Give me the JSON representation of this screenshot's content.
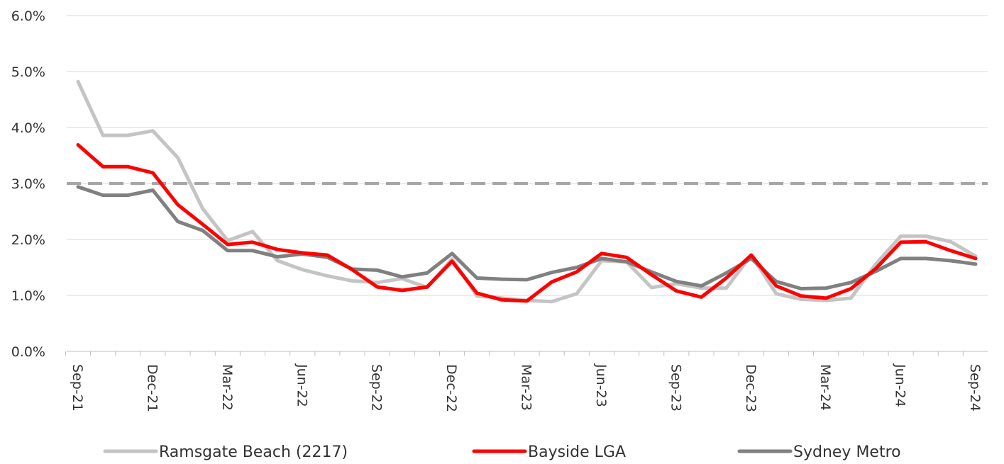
{
  "chart_data": {
    "type": "line",
    "title": "",
    "xlabel": "",
    "ylabel": "",
    "ylim": [
      0,
      6
    ],
    "y_ticks": [
      "0.0%",
      "1.0%",
      "2.0%",
      "3.0%",
      "4.0%",
      "5.0%",
      "6.0%"
    ],
    "x_tick_labels": [
      "Sep-21",
      "Dec-21",
      "Mar-22",
      "Jun-22",
      "Sep-22",
      "Dec-22",
      "Mar-23",
      "Jun-23",
      "Sep-23",
      "Dec-23",
      "Mar-24",
      "Jun-24",
      "Sep-24"
    ],
    "x": [
      "Sep-21",
      "Oct-21",
      "Nov-21",
      "Dec-21",
      "Jan-22",
      "Feb-22",
      "Mar-22",
      "Apr-22",
      "May-22",
      "Jun-22",
      "Jul-22",
      "Aug-22",
      "Sep-22",
      "Oct-22",
      "Nov-22",
      "Dec-22",
      "Jan-23",
      "Feb-23",
      "Mar-23",
      "Apr-23",
      "May-23",
      "Jun-23",
      "Jul-23",
      "Aug-23",
      "Sep-23",
      "Oct-23",
      "Nov-23",
      "Dec-23",
      "Jan-24",
      "Feb-24",
      "Mar-24",
      "Apr-24",
      "May-24",
      "Jun-24",
      "Jul-24",
      "Aug-24",
      "Sep-24"
    ],
    "grid": "horizontal",
    "legend_position": "bottom",
    "reference_line": {
      "value": 3.0,
      "style": "dashed",
      "color": "#a6a6a6"
    },
    "series": [
      {
        "name": "Ramsgate Beach (2217)",
        "color": "#c4c4c4",
        "values": [
          4.82,
          3.86,
          3.86,
          3.94,
          3.46,
          2.55,
          1.98,
          2.14,
          1.62,
          1.46,
          1.35,
          1.26,
          1.23,
          1.3,
          1.14,
          1.65,
          0.99,
          0.95,
          0.91,
          0.89,
          1.03,
          1.62,
          1.6,
          1.14,
          1.21,
          1.13,
          1.13,
          1.72,
          1.03,
          0.93,
          0.91,
          0.95,
          1.56,
          2.06,
          2.06,
          1.96,
          1.7
        ]
      },
      {
        "name": "Bayside LGA",
        "color": "#ff0000",
        "values": [
          3.69,
          3.3,
          3.3,
          3.19,
          2.62,
          2.27,
          1.91,
          1.95,
          1.82,
          1.76,
          1.72,
          1.46,
          1.15,
          1.09,
          1.15,
          1.61,
          1.04,
          0.92,
          0.9,
          1.24,
          1.42,
          1.75,
          1.68,
          1.37,
          1.08,
          0.97,
          1.31,
          1.72,
          1.17,
          0.99,
          0.95,
          1.12,
          1.48,
          1.95,
          1.96,
          1.8,
          1.66
        ]
      },
      {
        "name": "Sydney Metro",
        "color": "#808080",
        "values": [
          2.94,
          2.79,
          2.79,
          2.88,
          2.32,
          2.16,
          1.8,
          1.8,
          1.69,
          1.74,
          1.68,
          1.47,
          1.45,
          1.33,
          1.4,
          1.75,
          1.31,
          1.29,
          1.28,
          1.41,
          1.5,
          1.66,
          1.6,
          1.42,
          1.25,
          1.17,
          1.4,
          1.66,
          1.25,
          1.12,
          1.13,
          1.23,
          1.43,
          1.66,
          1.66,
          1.62,
          1.56
        ]
      }
    ]
  }
}
